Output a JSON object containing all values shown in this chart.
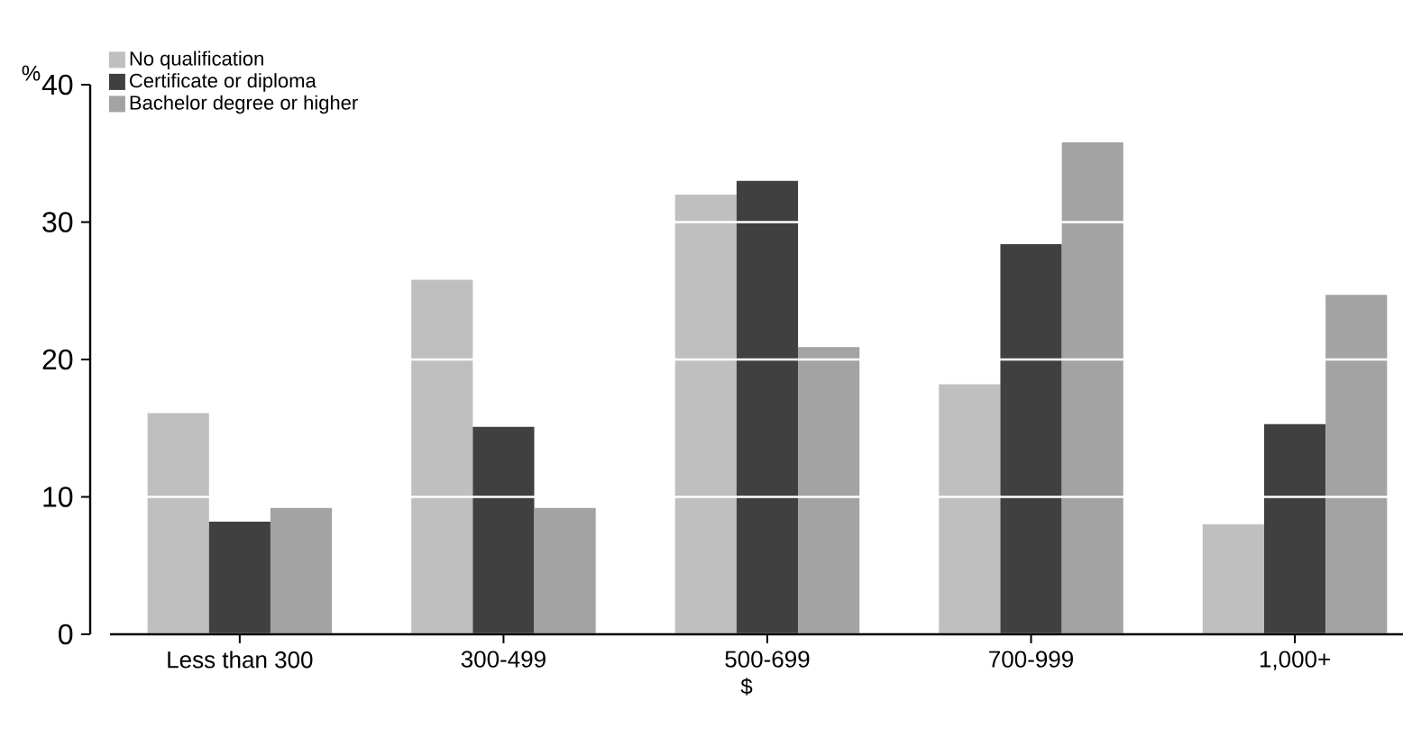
{
  "chart_data": {
    "type": "bar",
    "xlabel": "$",
    "ylabel": "%",
    "categories": [
      "Less than 300",
      "300-499",
      "500-699",
      "700-999",
      "1,000+"
    ],
    "series": [
      {
        "name": "No qualification",
        "color": "#bfbfbf",
        "values": [
          16.1,
          25.8,
          32.0,
          18.2,
          8.0
        ]
      },
      {
        "name": "Certificate or diploma",
        "color": "#404040",
        "values": [
          8.2,
          15.1,
          33.0,
          28.4,
          15.3
        ]
      },
      {
        "name": "Bachelor degree or higher",
        "color": "#a3a3a3",
        "values": [
          9.2,
          9.2,
          20.9,
          35.8,
          24.7
        ]
      }
    ],
    "ylim": [
      0,
      40
    ],
    "yticks": [
      0,
      10,
      20,
      30,
      40
    ],
    "grid": "y",
    "legend": "top left"
  }
}
